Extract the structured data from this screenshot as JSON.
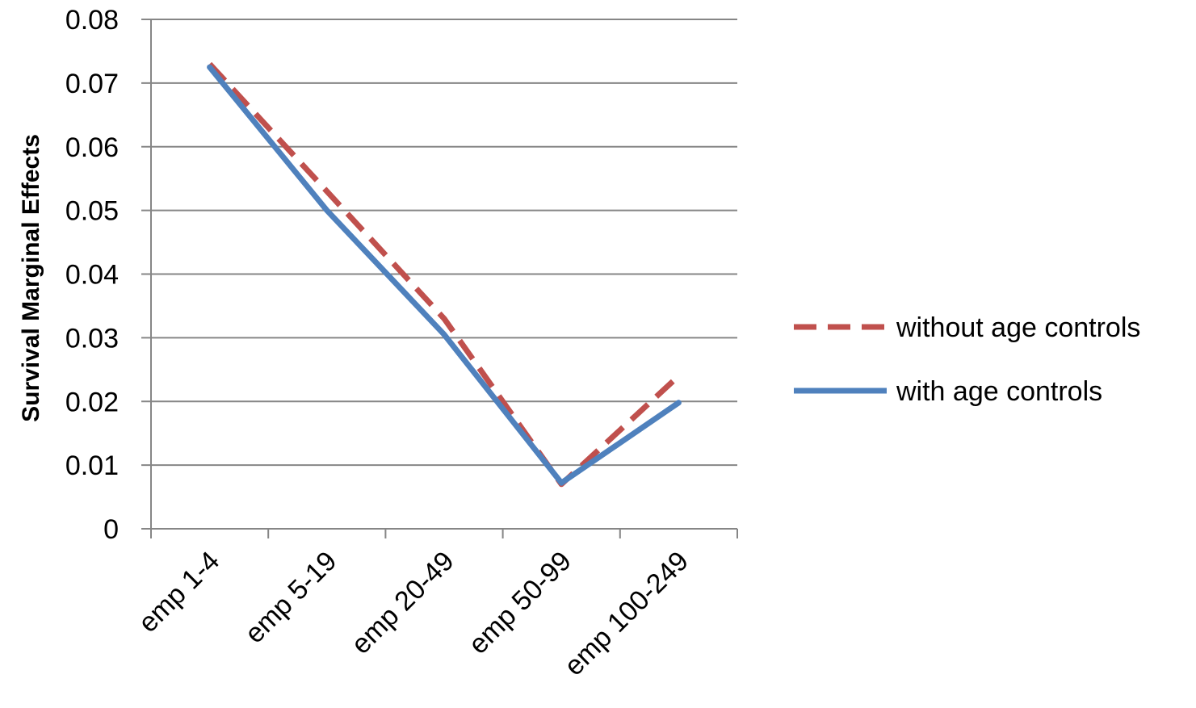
{
  "chart_data": {
    "type": "line",
    "title": "",
    "xlabel": "",
    "ylabel": "Survival Marginal Effects",
    "categories": [
      "emp 1-4",
      "emp 5-19",
      "emp 20-49",
      "emp 50-99",
      "emp 100-249"
    ],
    "series": [
      {
        "name": "without age controls",
        "values": [
          0.073,
          0.053,
          0.033,
          0.007,
          0.024
        ],
        "color": "#C0504D",
        "style": "dashed"
      },
      {
        "name": "with age controls",
        "values": [
          0.0725,
          0.05,
          0.0305,
          0.0072,
          0.0198
        ],
        "color": "#4F81BD",
        "style": "solid"
      }
    ],
    "ylim": [
      0,
      0.08
    ],
    "yticks": [
      "0",
      "0.01",
      "0.02",
      "0.03",
      "0.04",
      "0.05",
      "0.06",
      "0.07",
      "0.08"
    ],
    "grid": true,
    "legend": "right"
  }
}
